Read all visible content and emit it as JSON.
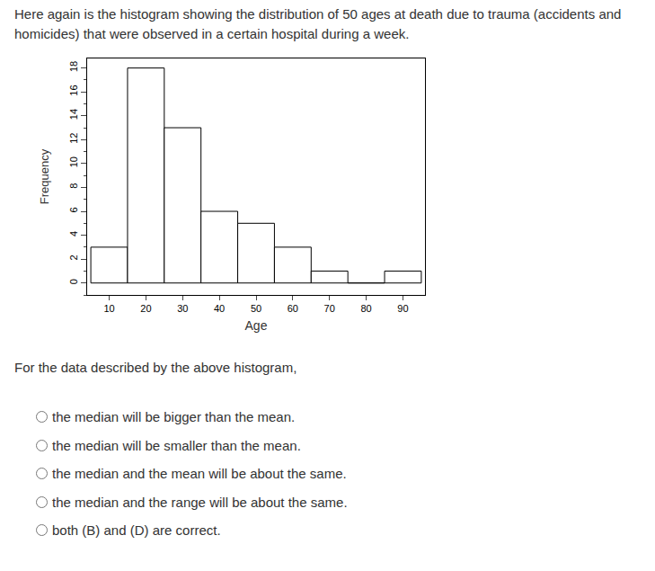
{
  "question": "Here again is the histogram showing the distribution of 50 ages at death due to trauma (accidents and homicides) that were observed in a certain hospital during a week.",
  "chart_data": {
    "type": "histogram",
    "bins": [
      5,
      15,
      25,
      35,
      45,
      55,
      65,
      75,
      85,
      95
    ],
    "counts": [
      3,
      18,
      13,
      6,
      5,
      3,
      1,
      0,
      1
    ],
    "xlabel": "Age",
    "ylabel": "Frequency",
    "xlim": [
      4,
      96
    ],
    "ylim": [
      -1,
      18.8
    ],
    "xticks": [
      10,
      20,
      30,
      40,
      50,
      60,
      70,
      80,
      90
    ],
    "yticks": [
      0,
      2,
      4,
      6,
      8,
      10,
      12,
      14,
      16,
      18
    ],
    "color": "#ffffff"
  },
  "prompt": "For the data described by the above histogram,",
  "options": [
    "the median will be bigger than the mean.",
    "the median will be smaller than the mean.",
    "the median and the mean will be about the same.",
    "the median and the range will be about the same.",
    "both (B) and (D) are correct."
  ]
}
